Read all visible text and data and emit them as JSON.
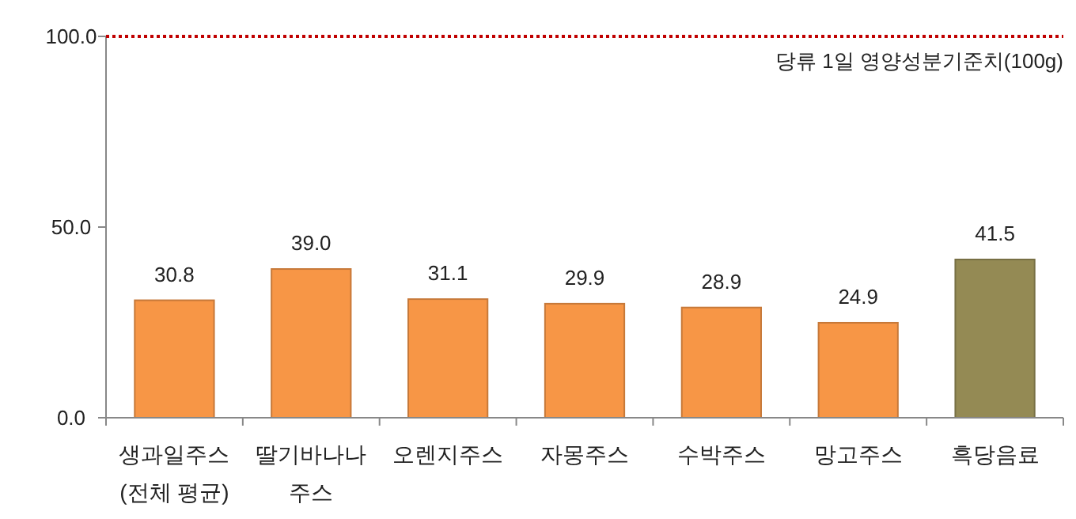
{
  "chart_data": {
    "type": "bar",
    "categories": [
      "생과일주스\n(전체 평균)",
      "딸기바나나\n주스",
      "오렌지주스",
      "자몽주스",
      "수박주스",
      "망고주스",
      "흑당음료"
    ],
    "values": [
      30.8,
      39.0,
      31.1,
      29.9,
      28.9,
      24.9,
      41.5
    ],
    "colors": [
      "#f79646",
      "#f79646",
      "#f79646",
      "#f79646",
      "#f79646",
      "#f79646",
      "#948a54"
    ],
    "ylim": [
      0,
      100
    ],
    "yticks": [
      {
        "value": 0,
        "label": "0.0"
      },
      {
        "value": 50,
        "label": "50.0"
      },
      {
        "value": 100,
        "label": "100.0"
      }
    ],
    "value_labels": [
      "30.8",
      "39.0",
      "31.1",
      "29.9",
      "28.9",
      "24.9",
      "41.5"
    ],
    "ref_lines": [
      {
        "axis": "y",
        "value": 100,
        "label": "당류 1일 영양성분기준치(100g)",
        "color": "#c00000",
        "line_style": "dotted"
      }
    ],
    "grid": false
  }
}
